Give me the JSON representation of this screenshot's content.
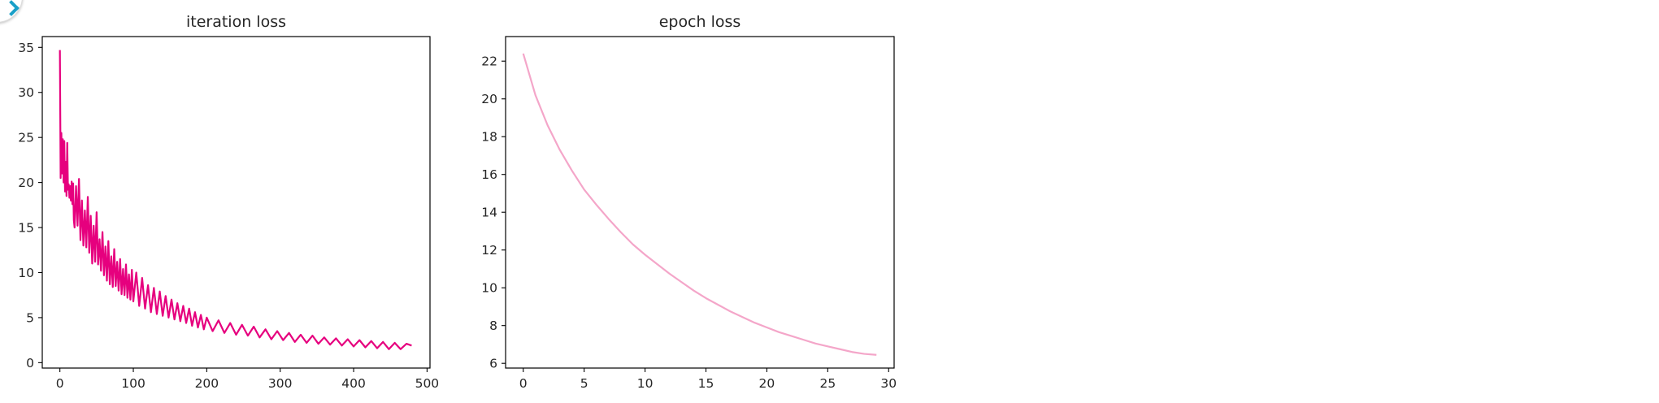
{
  "chart_data": [
    {
      "type": "line",
      "title": "iteration loss",
      "xlabel": "",
      "ylabel": "",
      "xlim": [
        -24,
        504
      ],
      "ylim": [
        -0.6,
        36.2
      ],
      "xticks": [
        0,
        100,
        200,
        300,
        400,
        500
      ],
      "yticks": [
        0,
        5,
        10,
        15,
        20,
        25,
        30,
        35
      ],
      "grid": false,
      "color": "#e6007e",
      "series": [
        {
          "x": [
            0,
            1,
            2,
            3,
            4,
            5,
            6,
            7,
            8,
            9,
            10,
            11,
            12,
            13,
            14,
            15,
            16,
            17,
            18,
            19,
            20,
            22,
            24,
            26,
            28,
            30,
            32,
            34,
            36,
            38,
            40,
            42,
            44,
            46,
            48,
            50,
            52,
            54,
            56,
            58,
            60,
            62,
            64,
            66,
            68,
            70,
            72,
            74,
            76,
            78,
            80,
            82,
            84,
            86,
            88,
            90,
            92,
            94,
            96,
            98,
            100,
            104,
            108,
            112,
            116,
            120,
            124,
            128,
            132,
            136,
            140,
            144,
            148,
            152,
            156,
            160,
            164,
            168,
            172,
            176,
            180,
            184,
            188,
            192,
            196,
            200,
            208,
            216,
            224,
            232,
            240,
            248,
            256,
            264,
            272,
            280,
            288,
            296,
            304,
            312,
            320,
            328,
            336,
            344,
            352,
            360,
            368,
            376,
            384,
            392,
            400,
            408,
            416,
            424,
            432,
            440,
            448,
            456,
            464,
            472,
            479
          ],
          "y": [
            34.7,
            20.5,
            25.5,
            21.0,
            24.8,
            20.0,
            24.6,
            19.0,
            22.3,
            18.5,
            24.4,
            19.2,
            19.8,
            18.3,
            19.6,
            18.0,
            20.1,
            17.6,
            19.9,
            15.8,
            15.0,
            19.6,
            15.2,
            20.4,
            13.6,
            18.0,
            13.0,
            16.9,
            12.8,
            18.4,
            12.2,
            16.3,
            11.0,
            15.2,
            11.2,
            16.7,
            10.9,
            13.7,
            10.2,
            14.5,
            9.7,
            12.9,
            9.1,
            13.5,
            8.7,
            11.8,
            8.4,
            12.6,
            8.5,
            11.2,
            8.0,
            11.5,
            7.6,
            10.4,
            7.5,
            10.9,
            7.2,
            9.8,
            7.0,
            10.3,
            6.8,
            10.0,
            6.3,
            9.4,
            6.0,
            8.6,
            5.6,
            8.3,
            5.4,
            7.9,
            5.2,
            7.4,
            5.0,
            7.0,
            4.8,
            6.6,
            4.6,
            6.3,
            4.4,
            6.0,
            4.1,
            5.6,
            3.9,
            5.3,
            3.7,
            5.0,
            3.5,
            4.7,
            3.3,
            4.4,
            3.1,
            4.2,
            3.0,
            4.0,
            2.8,
            3.7,
            2.6,
            3.5,
            2.5,
            3.3,
            2.3,
            3.1,
            2.2,
            3.0,
            2.1,
            2.8,
            2.0,
            2.7,
            1.9,
            2.6,
            1.8,
            2.5,
            1.7,
            2.4,
            1.6,
            2.3,
            1.5,
            2.2,
            1.5,
            2.1,
            1.9
          ]
        }
      ]
    },
    {
      "type": "line",
      "title": "epoch loss",
      "xlabel": "",
      "ylabel": "",
      "xlim": [
        -1.45,
        30.45
      ],
      "ylim": [
        5.75,
        23.3
      ],
      "xticks": [
        0,
        5,
        10,
        15,
        20,
        25,
        30
      ],
      "yticks": [
        6,
        8,
        10,
        12,
        14,
        16,
        18,
        20,
        22
      ],
      "grid": false,
      "color": "#f4a6c9",
      "series": [
        {
          "x": [
            0,
            1,
            2,
            3,
            4,
            5,
            6,
            7,
            8,
            9,
            10,
            11,
            12,
            13,
            14,
            15,
            16,
            17,
            18,
            19,
            20,
            21,
            22,
            23,
            24,
            25,
            26,
            27,
            28,
            29
          ],
          "y": [
            22.4,
            20.2,
            18.6,
            17.3,
            16.2,
            15.2,
            14.4,
            13.65,
            12.95,
            12.3,
            11.75,
            11.25,
            10.75,
            10.3,
            9.85,
            9.45,
            9.1,
            8.75,
            8.45,
            8.15,
            7.9,
            7.65,
            7.45,
            7.25,
            7.05,
            6.9,
            6.75,
            6.6,
            6.5,
            6.45
          ]
        }
      ]
    }
  ]
}
